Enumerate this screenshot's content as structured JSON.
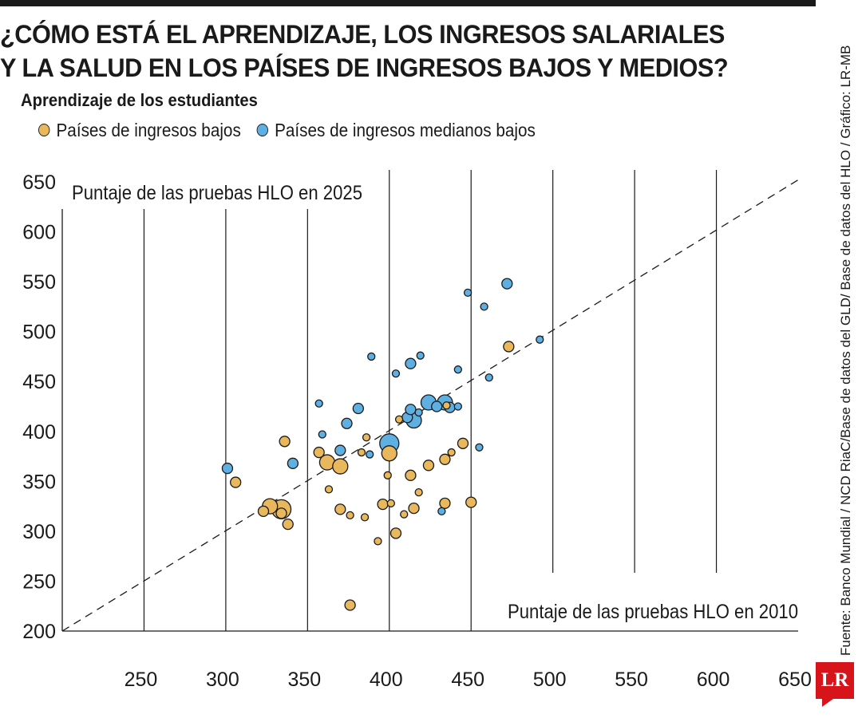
{
  "header": {
    "title_line1": "¿CÓMO ESTÁ EL APRENDIZAJE, LOS INGRESOS SALARIALES",
    "title_line2": "Y LA SALUD EN LOS PAÍSES DE INGRESOS BAJOS Y MEDIOS?",
    "subtitle": "Aprendizaje de los estudiantes"
  },
  "legend": {
    "low_income": "Países de ingresos bajos",
    "lower_middle_income": "Países de ingresos medianos bajos"
  },
  "source": "Fuente: Banco Mundial / NCD RiaC/Base de datos del GLD/ Base de datos del HLO / Gráfico: LR-MB",
  "logo": {
    "text": "LR"
  },
  "colors": {
    "low": "#e9b85c",
    "lower_middle": "#5fb0e2",
    "ink": "#1a1a1a",
    "brand": "#d7141a"
  },
  "chart_data": {
    "type": "scatter",
    "title": "Aprendizaje de los estudiantes",
    "xlabel": "Puntaje de las pruebas HLO en 2010",
    "ylabel": "Puntaje de las pruebas HLO en 2025",
    "xlim": [
      200,
      650
    ],
    "ylim": [
      200,
      650
    ],
    "x_ticks": [
      250,
      300,
      350,
      400,
      450,
      500,
      550,
      600,
      650
    ],
    "y_ticks": [
      200,
      250,
      300,
      350,
      400,
      450,
      500,
      550,
      600,
      650
    ],
    "reference_line": "y = x (dashed)",
    "grid": "vertical lines only",
    "legend_position": "top-left",
    "series": [
      {
        "name": "Países de ingresos bajos",
        "color": "#e9b85c",
        "points": [
          {
            "x": 306,
            "y": 349,
            "size": 2
          },
          {
            "x": 323,
            "y": 320,
            "size": 2
          },
          {
            "x": 327,
            "y": 325,
            "size": 3
          },
          {
            "x": 334,
            "y": 322,
            "size": 4
          },
          {
            "x": 334,
            "y": 318,
            "size": 2
          },
          {
            "x": 336,
            "y": 390,
            "size": 2
          },
          {
            "x": 338,
            "y": 307,
            "size": 2
          },
          {
            "x": 357,
            "y": 379,
            "size": 2
          },
          {
            "x": 362,
            "y": 369,
            "size": 3
          },
          {
            "x": 363,
            "y": 342,
            "size": 1
          },
          {
            "x": 370,
            "y": 322,
            "size": 2
          },
          {
            "x": 370,
            "y": 365,
            "size": 3
          },
          {
            "x": 376,
            "y": 316,
            "size": 1
          },
          {
            "x": 376,
            "y": 226,
            "size": 2
          },
          {
            "x": 383,
            "y": 379,
            "size": 1
          },
          {
            "x": 385,
            "y": 314,
            "size": 1
          },
          {
            "x": 386,
            "y": 394,
            "size": 1
          },
          {
            "x": 393,
            "y": 290,
            "size": 1
          },
          {
            "x": 396,
            "y": 327,
            "size": 2
          },
          {
            "x": 399,
            "y": 356,
            "size": 1
          },
          {
            "x": 400,
            "y": 378,
            "size": 3
          },
          {
            "x": 401,
            "y": 328,
            "size": 1
          },
          {
            "x": 404,
            "y": 298,
            "size": 2
          },
          {
            "x": 406,
            "y": 412,
            "size": 1
          },
          {
            "x": 409,
            "y": 317,
            "size": 1
          },
          {
            "x": 413,
            "y": 356,
            "size": 2
          },
          {
            "x": 415,
            "y": 323,
            "size": 2
          },
          {
            "x": 418,
            "y": 339,
            "size": 1
          },
          {
            "x": 424,
            "y": 366,
            "size": 2
          },
          {
            "x": 434,
            "y": 372,
            "size": 2
          },
          {
            "x": 434,
            "y": 328,
            "size": 2
          },
          {
            "x": 435,
            "y": 426,
            "size": 1
          },
          {
            "x": 438,
            "y": 379,
            "size": 1
          },
          {
            "x": 445,
            "y": 388,
            "size": 2
          },
          {
            "x": 450,
            "y": 329,
            "size": 2
          },
          {
            "x": 473,
            "y": 485,
            "size": 2
          }
        ]
      },
      {
        "name": "Países de ingresos medianos bajos",
        "color": "#5fb0e2",
        "points": [
          {
            "x": 301,
            "y": 363,
            "size": 2
          },
          {
            "x": 341,
            "y": 368,
            "size": 2
          },
          {
            "x": 357,
            "y": 428,
            "size": 1
          },
          {
            "x": 359,
            "y": 397,
            "size": 1
          },
          {
            "x": 370,
            "y": 381,
            "size": 2
          },
          {
            "x": 374,
            "y": 408,
            "size": 2
          },
          {
            "x": 381,
            "y": 423,
            "size": 2
          },
          {
            "x": 388,
            "y": 377,
            "size": 1
          },
          {
            "x": 389,
            "y": 475,
            "size": 1
          },
          {
            "x": 400,
            "y": 388,
            "size": 4
          },
          {
            "x": 404,
            "y": 458,
            "size": 1
          },
          {
            "x": 411,
            "y": 414,
            "size": 2
          },
          {
            "x": 413,
            "y": 422,
            "size": 2
          },
          {
            "x": 413,
            "y": 468,
            "size": 2
          },
          {
            "x": 415,
            "y": 411,
            "size": 3
          },
          {
            "x": 418,
            "y": 419,
            "size": 1
          },
          {
            "x": 419,
            "y": 476,
            "size": 1
          },
          {
            "x": 424,
            "y": 429,
            "size": 3
          },
          {
            "x": 429,
            "y": 425,
            "size": 2
          },
          {
            "x": 432,
            "y": 320,
            "size": 1
          },
          {
            "x": 434,
            "y": 429,
            "size": 3
          },
          {
            "x": 437,
            "y": 424,
            "size": 2
          },
          {
            "x": 442,
            "y": 425,
            "size": 1
          },
          {
            "x": 442,
            "y": 462,
            "size": 1
          },
          {
            "x": 448,
            "y": 539,
            "size": 1
          },
          {
            "x": 455,
            "y": 384,
            "size": 1
          },
          {
            "x": 458,
            "y": 525,
            "size": 1
          },
          {
            "x": 461,
            "y": 454,
            "size": 1
          },
          {
            "x": 472,
            "y": 548,
            "size": 2
          },
          {
            "x": 492,
            "y": 492,
            "size": 1
          }
        ]
      }
    ]
  }
}
